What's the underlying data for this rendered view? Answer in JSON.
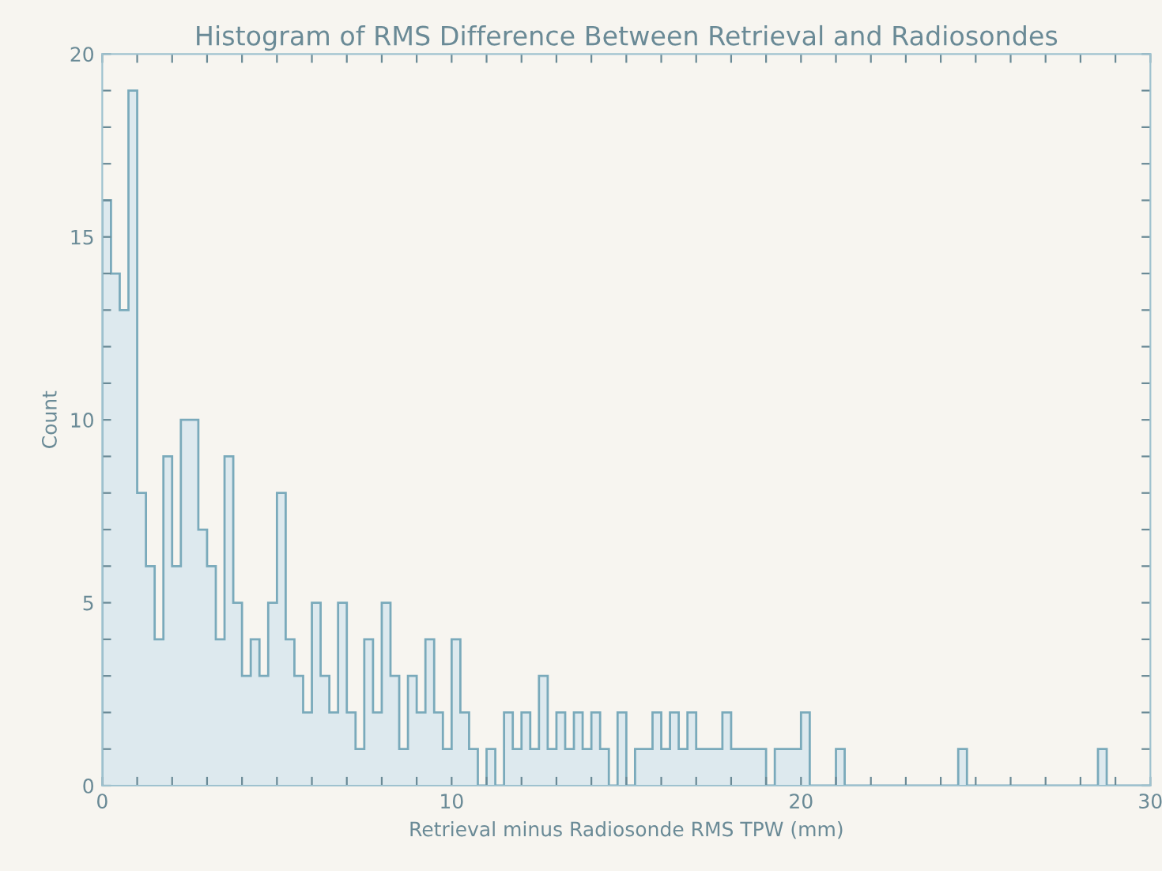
{
  "chart_data": {
    "type": "histogram",
    "title": "Histogram of RMS Difference Between Retrieval and Radiosondes",
    "xlabel": "Retrieval minus Radiosonde RMS TPW (mm)",
    "ylabel": "Count",
    "bins": [
      0,
      0.25,
      0.5,
      0.75,
      1,
      1.25,
      1.5,
      1.75,
      2,
      2.25,
      2.5,
      2.75,
      3,
      3.25,
      3.5,
      3.75,
      4,
      4.25,
      4.5,
      4.75,
      5,
      5.25,
      5.5,
      5.75,
      6,
      6.25,
      6.5,
      6.75,
      7,
      7.25,
      7.5,
      7.75,
      8,
      8.25,
      8.5,
      8.75,
      9,
      9.25,
      9.5,
      9.75,
      10,
      10.25,
      10.5,
      10.75,
      11,
      11.25,
      11.5,
      11.75,
      12,
      12.25,
      12.5,
      12.75,
      13,
      13.25,
      13.5,
      13.75,
      14,
      14.25,
      14.5,
      14.75,
      15,
      15.25,
      15.5,
      15.75,
      16,
      16.25,
      16.5,
      16.75,
      17,
      17.25,
      17.5,
      17.75,
      18,
      18.25,
      18.5,
      18.75,
      19,
      19.25,
      19.5,
      19.75,
      20,
      20.25,
      20.5,
      20.75,
      21,
      21.25,
      21.5,
      21.75,
      22,
      22.25,
      22.5,
      22.75,
      23,
      23.25,
      23.5,
      23.75,
      24,
      24.25,
      24.5,
      24.75,
      25,
      25.25,
      25.5,
      25.75,
      26,
      26.25,
      26.5,
      26.75,
      27,
      27.25,
      27.5,
      27.75,
      28,
      28.25,
      28.5,
      28.75,
      29,
      29.25,
      29.5,
      29.75,
      30
    ],
    "values": [
      16,
      14,
      13,
      19,
      8,
      6,
      4,
      9,
      6,
      10,
      10,
      7,
      6,
      4,
      9,
      5,
      3,
      4,
      3,
      5,
      8,
      4,
      3,
      2,
      5,
      3,
      2,
      5,
      2,
      1,
      4,
      2,
      5,
      3,
      1,
      3,
      2,
      4,
      2,
      1,
      4,
      2,
      1,
      0,
      1,
      0,
      2,
      1,
      2,
      1,
      3,
      1,
      2,
      1,
      2,
      1,
      2,
      1,
      0,
      2,
      0,
      1,
      1,
      2,
      1,
      2,
      1,
      2,
      1,
      1,
      1,
      2,
      1,
      1,
      1,
      1,
      0,
      1,
      1,
      1,
      2,
      0,
      0,
      0,
      1,
      0,
      0,
      0,
      0,
      0,
      0,
      0,
      0,
      0,
      0,
      0,
      0,
      0,
      1,
      0,
      0,
      0,
      0,
      0,
      0,
      0,
      0,
      0,
      0,
      0,
      0,
      0,
      0,
      0,
      1,
      0,
      0,
      0,
      0,
      0
    ],
    "color": "#dde9ee",
    "xlim": [
      0,
      30
    ],
    "ylim": [
      0,
      20
    ],
    "xticks": [
      0,
      {
        "value": 1,
        "label": null
      },
      {
        "value": 2,
        "label": null
      },
      {
        "value": 3,
        "label": null
      },
      {
        "value": 4,
        "label": null
      },
      {
        "value": 5,
        "label": null
      },
      {
        "value": 6,
        "label": null
      },
      {
        "value": 7,
        "label": null
      },
      {
        "value": 8,
        "label": null
      },
      {
        "value": 9,
        "label": null
      },
      10,
      {
        "value": 11,
        "label": null
      },
      {
        "value": 12,
        "label": null
      },
      {
        "value": 13,
        "label": null
      },
      {
        "value": 14,
        "label": null
      },
      {
        "value": 15,
        "label": null
      },
      {
        "value": 16,
        "label": null
      },
      {
        "value": 17,
        "label": null
      },
      {
        "value": 18,
        "label": null
      },
      {
        "value": 19,
        "label": null
      },
      20,
      {
        "value": 21,
        "label": null
      },
      {
        "value": 22,
        "label": null
      },
      {
        "value": 23,
        "label": null
      },
      {
        "value": 24,
        "label": null
      },
      {
        "value": 25,
        "label": null
      },
      {
        "value": 26,
        "label": null
      },
      {
        "value": 27,
        "label": null
      },
      {
        "value": 28,
        "label": null
      },
      {
        "value": 29,
        "label": null
      },
      30
    ],
    "yticks": [
      0,
      {
        "value": 1,
        "label": null
      },
      {
        "value": 2,
        "label": null
      },
      {
        "value": 3,
        "label": null
      },
      {
        "value": 4,
        "label": null
      },
      5,
      {
        "value": 6,
        "label": null
      },
      {
        "value": 7,
        "label": null
      },
      {
        "value": 8,
        "label": null
      },
      {
        "value": 9,
        "label": null
      },
      10,
      {
        "value": 11,
        "label": null
      },
      {
        "value": 12,
        "label": null
      },
      {
        "value": 13,
        "label": null
      },
      {
        "value": 14,
        "label": null
      },
      15,
      {
        "value": 16,
        "label": null
      },
      {
        "value": 17,
        "label": null
      },
      {
        "value": 18,
        "label": null
      },
      {
        "value": 19,
        "label": null
      },
      20
    ],
    "grid": false,
    "legend": false
  }
}
